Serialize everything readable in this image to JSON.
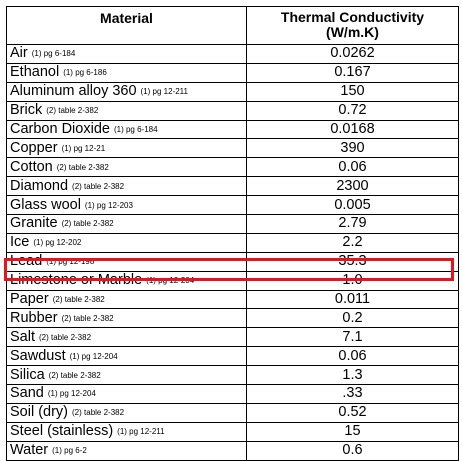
{
  "table": {
    "headers": {
      "material": "Material",
      "conductivity_line1": "Thermal Conductivity",
      "conductivity_line2": "(W/m.K)"
    },
    "rows": [
      {
        "name": "Air",
        "ref": "(1) pg 6-184",
        "value": "0.0262"
      },
      {
        "name": "Ethanol",
        "ref": "(1) pg 6-186",
        "value": "0.167"
      },
      {
        "name": "Aluminum alloy 360",
        "ref": "(1) pg 12-211",
        "value": "150"
      },
      {
        "name": "Brick",
        "ref": "(2) table 2-382",
        "value": "0.72"
      },
      {
        "name": "Carbon Dioxide",
        "ref": "(1) pg 6-184",
        "value": "0.0168"
      },
      {
        "name": "Copper",
        "ref": "(1) pg 12-21",
        "value": "390"
      },
      {
        "name": "Cotton",
        "ref": "(2) table 2-382",
        "value": "0.06"
      },
      {
        "name": "Diamond",
        "ref": "(2) table 2-382",
        "value": "2300"
      },
      {
        "name": "Glass wool",
        "ref": "(1) pg 12-203",
        "value": "0.005"
      },
      {
        "name": "Granite",
        "ref": "(2) table 2-382",
        "value": "2.79"
      },
      {
        "name": "Ice",
        "ref": "(1) pg 12-202",
        "value": "2.2"
      },
      {
        "name": "Lead",
        "ref": "(1) pg 12-198",
        "value": "35.3"
      },
      {
        "name": "Limestone or Marble",
        "ref": "(1) pg 12-204",
        "value": "1.0",
        "highlighted": true
      },
      {
        "name": "Paper",
        "ref": "(2) table 2-382",
        "value": "0.011"
      },
      {
        "name": "Rubber",
        "ref": "(2) table 2-382",
        "value": "0.2"
      },
      {
        "name": "Salt",
        "ref": "(2) table 2-382",
        "value": "7.1"
      },
      {
        "name": "Sawdust",
        "ref": "(1) pg 12-204",
        "value": "0.06"
      },
      {
        "name": "Silica",
        "ref": "(2) table 2-382",
        "value": "1.3"
      },
      {
        "name": "Sand",
        "ref": "(1) pg 12-204",
        "value": ".33"
      },
      {
        "name": "Soil (dry)",
        "ref": "(2) table 2-382",
        "value": "0.52"
      },
      {
        "name": "Steel (stainless)",
        "ref": "(1) pg 12-211",
        "value": "15"
      },
      {
        "name": "Water",
        "ref": "(1) pg 6-2",
        "value": "0.6"
      }
    ],
    "highlight_color": "#e8141b"
  }
}
